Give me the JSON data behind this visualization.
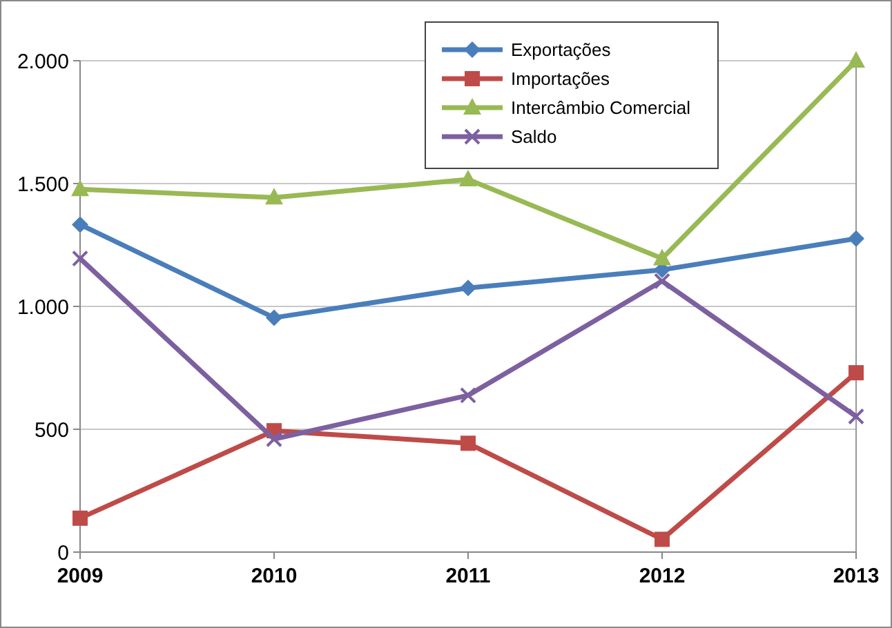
{
  "chart_data": {
    "type": "line",
    "categories": [
      "2009",
      "2010",
      "2011",
      "2012",
      "2013"
    ],
    "series": [
      {
        "name": "Exportações",
        "color": "#4a7ebb",
        "values": [
          1333,
          954,
          1075,
          1149,
          1276
        ],
        "marker": "diamond"
      },
      {
        "name": "Importações",
        "color": "#be4b48",
        "values": [
          138,
          494,
          443,
          52,
          730
        ],
        "marker": "square"
      },
      {
        "name": "Intercâmbio Comercial",
        "color": "#98b954",
        "values": [
          1477,
          1443,
          1517,
          1195,
          2000
        ],
        "marker": "triangle"
      },
      {
        "name": "Saldo",
        "color": "#7d60a0",
        "values": [
          1195,
          460,
          638,
          1103,
          552
        ],
        "marker": "cross"
      }
    ],
    "ylim": [
      0,
      2000
    ],
    "yticks": [
      {
        "value": 0,
        "label": "0"
      },
      {
        "value": 500,
        "label": "500"
      },
      {
        "value": 1000,
        "label": "1.000"
      },
      {
        "value": 1500,
        "label": "1.500"
      },
      {
        "value": 2000,
        "label": "2.000"
      }
    ],
    "grid": "y",
    "legend": "top right"
  }
}
